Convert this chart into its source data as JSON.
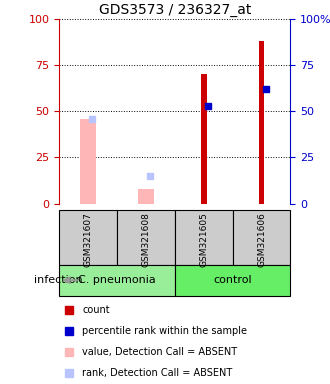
{
  "title": "GDS3573 / 236327_at",
  "samples": [
    "GSM321607",
    "GSM321608",
    "GSM321605",
    "GSM321606"
  ],
  "ylim": [
    0,
    100
  ],
  "yticks": [
    0,
    25,
    50,
    75,
    100
  ],
  "red_bars": [
    null,
    null,
    70,
    88
  ],
  "pink_bars": [
    46,
    8,
    null,
    null
  ],
  "blue_squares": [
    null,
    null,
    53,
    62
  ],
  "light_blue_squares": [
    46,
    15,
    null,
    null
  ],
  "left_axis_color": "#CC0000",
  "right_axis_color": "#0000CC",
  "title_fontsize": 10,
  "group_info": [
    {
      "name": "C. pneumonia",
      "start": 0,
      "end": 1,
      "color": "#99EE99"
    },
    {
      "name": "control",
      "start": 2,
      "end": 3,
      "color": "#66EE66"
    }
  ],
  "legend_colors": [
    "#CC0000",
    "#0000CC",
    "#FFB6B6",
    "#B8C4FF"
  ],
  "legend_labels": [
    "count",
    "percentile rank within the sample",
    "value, Detection Call = ABSENT",
    "rank, Detection Call = ABSENT"
  ]
}
